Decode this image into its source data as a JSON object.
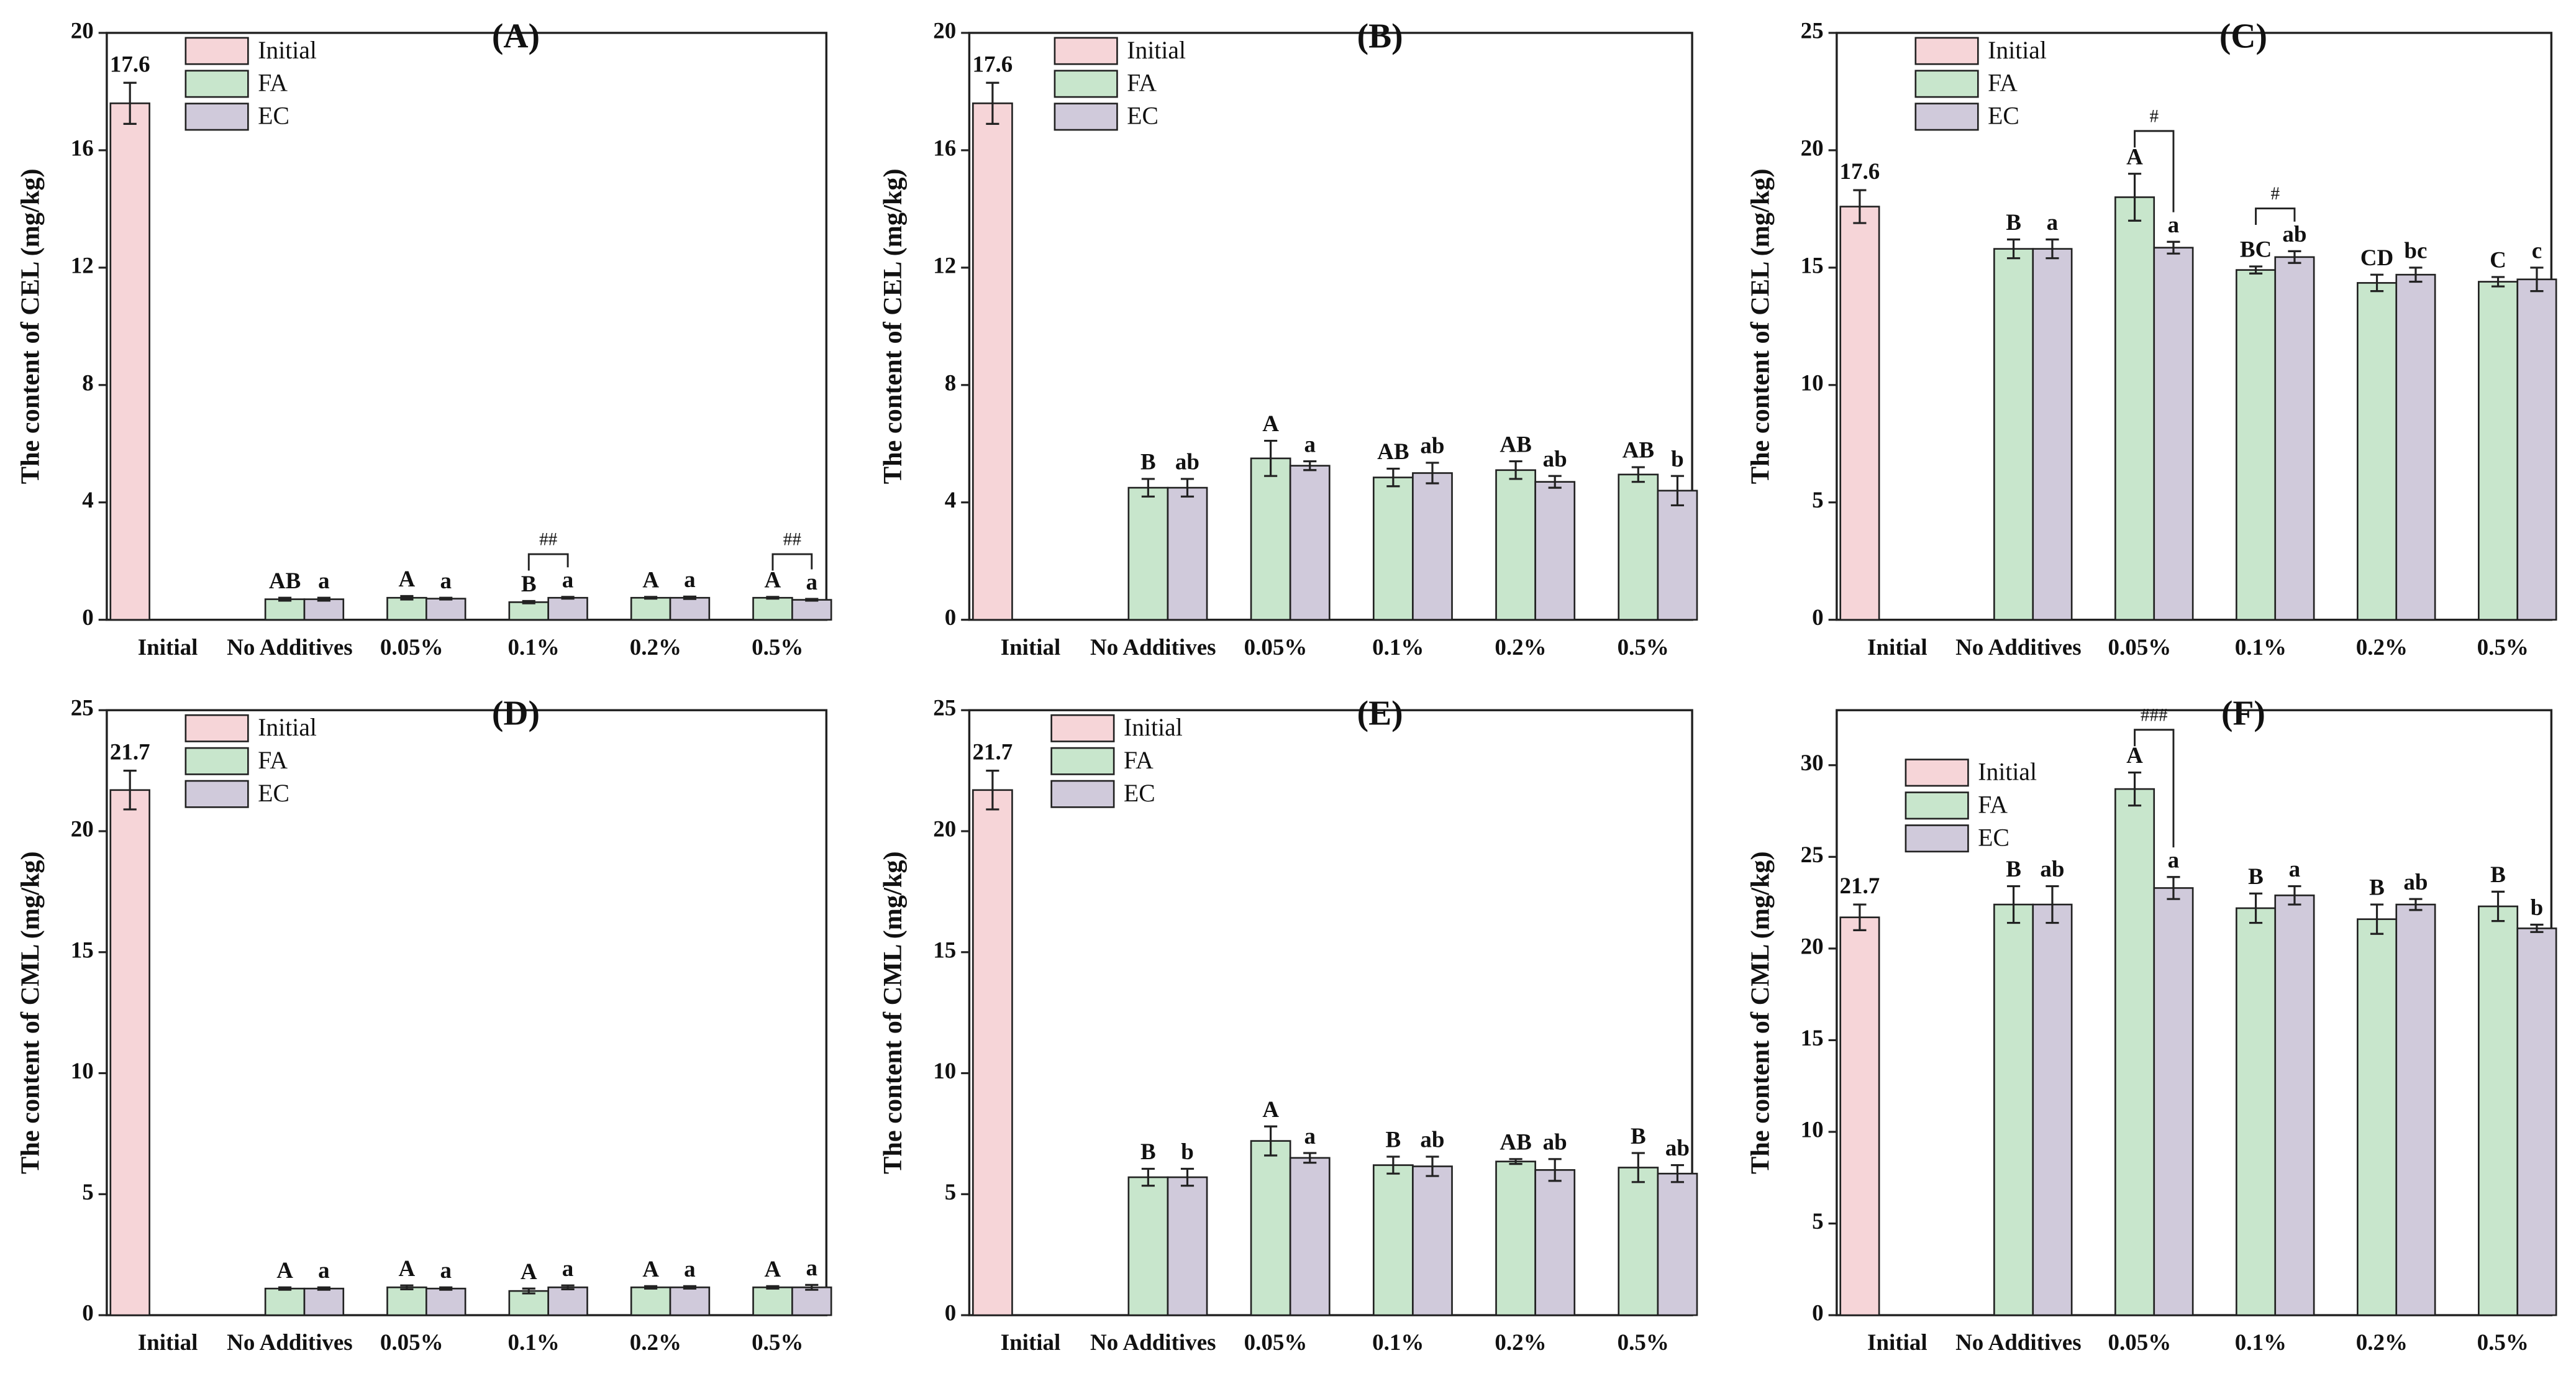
{
  "chart_data": [
    {
      "type": "bar",
      "title": "(A)",
      "ylabel": "The content of CEL (mg/kg)",
      "legend": "upper left",
      "categories": [
        "Initial",
        "No Additives",
        "0.05%",
        "0.1%",
        "0.2%",
        "0.5%"
      ],
      "ylim": [
        0,
        20
      ],
      "yticks": [
        0,
        4,
        8,
        12,
        16,
        20
      ],
      "series": [
        {
          "name": "Initial",
          "color": "#f6d5d8",
          "values": [
            17.6,
            null,
            null,
            null,
            null,
            null
          ],
          "errors": [
            0.7,
            null,
            null,
            null,
            null,
            null
          ],
          "value_labels": [
            "17.6",
            null,
            null,
            null,
            null,
            null
          ]
        },
        {
          "name": "FA",
          "color": "#c8e6cc",
          "values": [
            null,
            0.7,
            0.75,
            0.6,
            0.75,
            0.75
          ],
          "errors": [
            null,
            0.05,
            0.06,
            0.04,
            0.03,
            0.03
          ],
          "letters": [
            null,
            "AB",
            "A",
            "B",
            "A",
            "A"
          ]
        },
        {
          "name": "EC",
          "color": "#d0cadb",
          "values": [
            null,
            0.7,
            0.72,
            0.75,
            0.75,
            0.68
          ],
          "errors": [
            null,
            0.05,
            0.03,
            0.03,
            0.04,
            0.03
          ],
          "letters": [
            null,
            "a",
            "a",
            "a",
            "a",
            "a"
          ]
        }
      ],
      "significance": [
        null,
        null,
        null,
        "##",
        null,
        "##"
      ]
    },
    {
      "type": "bar",
      "title": "(B)",
      "ylabel": "The content of CEL (mg/kg)",
      "legend": "upper left",
      "categories": [
        "Initial",
        "No Additives",
        "0.05%",
        "0.1%",
        "0.2%",
        "0.5%"
      ],
      "ylim": [
        0,
        20
      ],
      "yticks": [
        0,
        4,
        8,
        12,
        16,
        20
      ],
      "series": [
        {
          "name": "Initial",
          "color": "#f6d5d8",
          "values": [
            17.6,
            null,
            null,
            null,
            null,
            null
          ],
          "errors": [
            0.7,
            null,
            null,
            null,
            null,
            null
          ],
          "value_labels": [
            "17.6",
            null,
            null,
            null,
            null,
            null
          ]
        },
        {
          "name": "FA",
          "color": "#c8e6cc",
          "values": [
            null,
            4.5,
            5.5,
            4.85,
            5.1,
            4.95
          ],
          "errors": [
            null,
            0.3,
            0.6,
            0.3,
            0.3,
            0.25
          ],
          "letters": [
            null,
            "B",
            "A",
            "AB",
            "AB",
            "AB"
          ]
        },
        {
          "name": "EC",
          "color": "#d0cadb",
          "values": [
            null,
            4.5,
            5.25,
            5.0,
            4.7,
            4.4
          ],
          "errors": [
            null,
            0.3,
            0.15,
            0.35,
            0.2,
            0.5
          ],
          "letters": [
            null,
            "ab",
            "a",
            "ab",
            "ab",
            "b"
          ]
        }
      ],
      "significance": [
        null,
        null,
        null,
        null,
        null,
        null
      ]
    },
    {
      "type": "bar",
      "title": "(C)",
      "ylabel": "The content of CEL (mg/kg)",
      "legend": "upper left",
      "categories": [
        "Initial",
        "No Additives",
        "0.05%",
        "0.1%",
        "0.2%",
        "0.5%"
      ],
      "ylim": [
        0,
        25
      ],
      "yticks": [
        0,
        5,
        10,
        15,
        20,
        25
      ],
      "series": [
        {
          "name": "Initial",
          "color": "#f6d5d8",
          "values": [
            17.6,
            null,
            null,
            null,
            null,
            null
          ],
          "errors": [
            0.7,
            null,
            null,
            null,
            null,
            null
          ],
          "value_labels": [
            "17.6",
            null,
            null,
            null,
            null,
            null
          ]
        },
        {
          "name": "FA",
          "color": "#c8e6cc",
          "values": [
            null,
            15.8,
            18.0,
            14.9,
            14.35,
            14.4
          ],
          "errors": [
            null,
            0.4,
            1.0,
            0.15,
            0.35,
            0.2
          ],
          "letters": [
            null,
            "B",
            "A",
            "BC",
            "CD",
            "C"
          ]
        },
        {
          "name": "EC",
          "color": "#d0cadb",
          "values": [
            null,
            15.8,
            15.85,
            15.45,
            14.7,
            14.5
          ],
          "errors": [
            null,
            0.4,
            0.25,
            0.25,
            0.3,
            0.5
          ],
          "letters": [
            null,
            "a",
            "a",
            "ab",
            "bc",
            "c"
          ]
        }
      ],
      "significance": [
        null,
        null,
        "#",
        "#",
        null,
        null
      ]
    },
    {
      "type": "bar",
      "title": "(D)",
      "ylabel": "The content of CML (mg/kg)",
      "legend": "upper left",
      "categories": [
        "Initial",
        "No Additives",
        "0.05%",
        "0.1%",
        "0.2%",
        "0.5%"
      ],
      "ylim": [
        0,
        25
      ],
      "yticks": [
        0,
        5,
        10,
        15,
        20,
        25
      ],
      "series": [
        {
          "name": "Initial",
          "color": "#f6d5d8",
          "values": [
            21.7,
            null,
            null,
            null,
            null,
            null
          ],
          "errors": [
            0.8,
            null,
            null,
            null,
            null,
            null
          ],
          "value_labels": [
            "21.7",
            null,
            null,
            null,
            null,
            null
          ]
        },
        {
          "name": "FA",
          "color": "#c8e6cc",
          "values": [
            null,
            1.1,
            1.15,
            1.0,
            1.15,
            1.15
          ],
          "errors": [
            null,
            0.05,
            0.08,
            0.1,
            0.05,
            0.05
          ],
          "letters": [
            null,
            "A",
            "A",
            "A",
            "A",
            "A"
          ]
        },
        {
          "name": "EC",
          "color": "#d0cadb",
          "values": [
            null,
            1.1,
            1.1,
            1.15,
            1.15,
            1.15
          ],
          "errors": [
            null,
            0.05,
            0.05,
            0.08,
            0.05,
            0.1
          ],
          "letters": [
            null,
            "a",
            "a",
            "a",
            "a",
            "a"
          ]
        }
      ],
      "significance": [
        null,
        null,
        null,
        null,
        null,
        null
      ]
    },
    {
      "type": "bar",
      "title": "(E)",
      "ylabel": "The content of CML (mg/kg)",
      "legend": "upper left",
      "categories": [
        "Initial",
        "No Additives",
        "0.05%",
        "0.1%",
        "0.2%",
        "0.5%"
      ],
      "ylim": [
        0,
        25
      ],
      "yticks": [
        0,
        5,
        10,
        15,
        20,
        25
      ],
      "series": [
        {
          "name": "Initial",
          "color": "#f6d5d8",
          "values": [
            21.7,
            null,
            null,
            null,
            null,
            null
          ],
          "errors": [
            0.8,
            null,
            null,
            null,
            null,
            null
          ],
          "value_labels": [
            "21.7",
            null,
            null,
            null,
            null,
            null
          ]
        },
        {
          "name": "FA",
          "color": "#c8e6cc",
          "values": [
            null,
            5.7,
            7.2,
            6.2,
            6.35,
            6.1
          ],
          "errors": [
            null,
            0.35,
            0.6,
            0.35,
            0.1,
            0.6
          ],
          "letters": [
            null,
            "B",
            "A",
            "B",
            "AB",
            "B"
          ]
        },
        {
          "name": "EC",
          "color": "#d0cadb",
          "values": [
            null,
            5.7,
            6.5,
            6.15,
            6.0,
            5.85
          ],
          "errors": [
            null,
            0.35,
            0.2,
            0.4,
            0.45,
            0.35
          ],
          "letters": [
            null,
            "b",
            "a",
            "ab",
            "ab",
            "ab"
          ]
        }
      ],
      "significance": [
        null,
        null,
        null,
        null,
        null,
        null
      ]
    },
    {
      "type": "bar",
      "title": "(F)",
      "ylabel": "The content of CML (mg/kg)",
      "legend": "upper left",
      "categories": [
        "Initial",
        "No Additives",
        "0.05%",
        "0.1%",
        "0.2%",
        "0.5%"
      ],
      "ylim": [
        0,
        33
      ],
      "yticks": [
        0,
        5,
        10,
        15,
        20,
        25,
        30
      ],
      "series": [
        {
          "name": "Initial",
          "color": "#f6d5d8",
          "values": [
            21.7,
            null,
            null,
            null,
            null,
            null
          ],
          "errors": [
            0.7,
            null,
            null,
            null,
            null,
            null
          ],
          "value_labels": [
            "21.7",
            null,
            null,
            null,
            null,
            null
          ]
        },
        {
          "name": "FA",
          "color": "#c8e6cc",
          "values": [
            null,
            22.4,
            28.7,
            22.2,
            21.6,
            22.3
          ],
          "errors": [
            null,
            1.0,
            0.9,
            0.8,
            0.8,
            0.8
          ],
          "letters": [
            null,
            "B",
            "A",
            "B",
            "B",
            "B"
          ]
        },
        {
          "name": "EC",
          "color": "#d0cadb",
          "values": [
            null,
            22.4,
            23.3,
            22.9,
            22.4,
            21.1
          ],
          "errors": [
            null,
            1.0,
            0.6,
            0.5,
            0.3,
            0.2
          ],
          "letters": [
            null,
            "ab",
            "a",
            "a",
            "ab",
            "b"
          ]
        }
      ],
      "significance": [
        null,
        null,
        "###",
        null,
        null,
        null
      ]
    }
  ]
}
